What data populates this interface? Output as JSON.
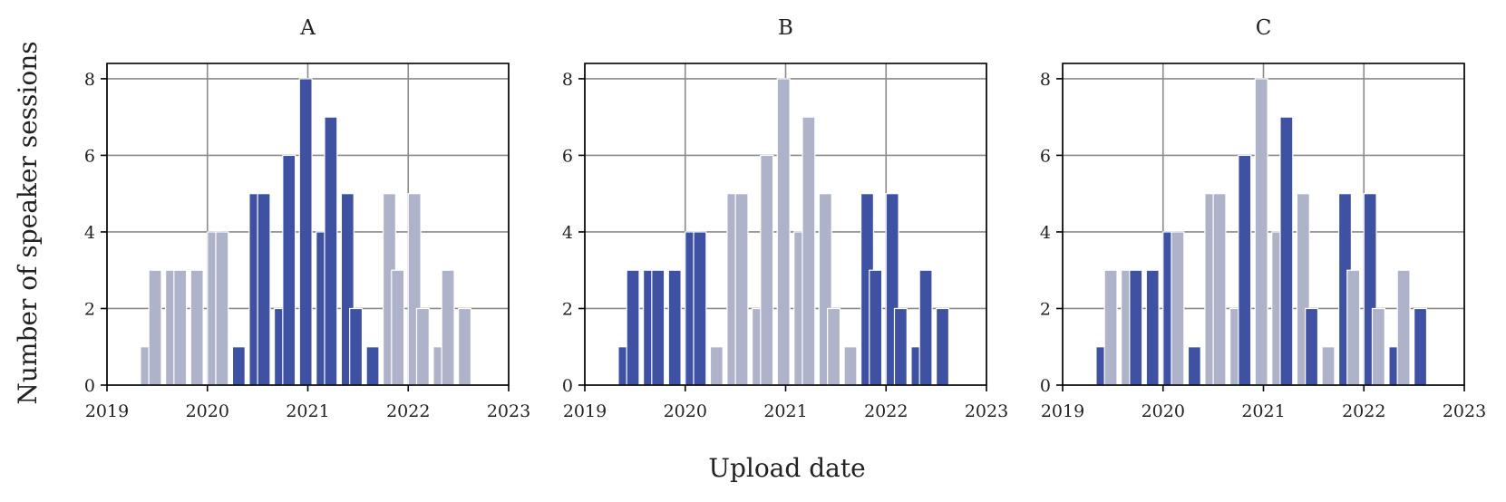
{
  "figure": {
    "xlabel": "Upload date",
    "ylabel": "Number of speaker sessions"
  },
  "colors": {
    "highlight": "#3f51a3",
    "muted": "#aeb3c9",
    "grid": "#8a8a8a"
  },
  "chart_data": [
    {
      "type": "bar",
      "title": "A",
      "x": [
        "2019-05",
        "2019-06",
        "2019-07",
        "2019-08",
        "2019-09",
        "2019-10",
        "2019-11",
        "2019-12",
        "2020-01",
        "2020-02",
        "2020-03",
        "2020-04",
        "2020-05",
        "2020-06",
        "2020-07",
        "2020-08",
        "2020-09",
        "2020-10",
        "2020-11",
        "2020-12",
        "2021-01",
        "2021-02",
        "2021-03",
        "2021-04",
        "2021-05",
        "2021-06",
        "2021-07",
        "2021-08",
        "2021-09",
        "2021-10",
        "2021-11",
        "2021-12",
        "2022-01",
        "2022-02",
        "2022-03",
        "2022-04",
        "2022-05",
        "2022-06",
        "2022-07",
        "2022-08",
        "2022-09",
        "2022-10"
      ],
      "bins": [
        {
          "start": "2019-05",
          "value": 1,
          "highlight": false
        },
        {
          "start": "2019-06",
          "value": 3,
          "highlight": false
        },
        {
          "start": "2019-08",
          "value": 3,
          "highlight": false
        },
        {
          "start": "2019-09",
          "value": 3,
          "highlight": false
        },
        {
          "start": "2019-11",
          "value": 3,
          "highlight": false
        },
        {
          "start": "2020-01",
          "value": 4,
          "highlight": false
        },
        {
          "start": "2020-02",
          "value": 4,
          "highlight": false
        },
        {
          "start": "2020-04",
          "value": 1,
          "highlight": true
        },
        {
          "start": "2020-06",
          "value": 5,
          "highlight": true
        },
        {
          "start": "2020-07",
          "value": 5,
          "highlight": true
        },
        {
          "start": "2020-09",
          "value": 2,
          "highlight": true
        },
        {
          "start": "2020-10",
          "value": 6,
          "highlight": true
        },
        {
          "start": "2020-12",
          "value": 8,
          "highlight": true
        },
        {
          "start": "2021-02",
          "value": 4,
          "highlight": true
        },
        {
          "start": "2021-03",
          "value": 7,
          "highlight": true
        },
        {
          "start": "2021-05",
          "value": 5,
          "highlight": true
        },
        {
          "start": "2021-06",
          "value": 2,
          "highlight": true
        },
        {
          "start": "2021-08",
          "value": 1,
          "highlight": true
        },
        {
          "start": "2021-10",
          "value": 5,
          "highlight": false
        },
        {
          "start": "2021-11",
          "value": 3,
          "highlight": false
        },
        {
          "start": "2022-01",
          "value": 5,
          "highlight": false
        },
        {
          "start": "2022-02",
          "value": 2,
          "highlight": false
        },
        {
          "start": "2022-04",
          "value": 1,
          "highlight": false
        },
        {
          "start": "2022-05",
          "value": 3,
          "highlight": false
        },
        {
          "start": "2022-07",
          "value": 2,
          "highlight": false
        }
      ],
      "xlim": [
        "2019-01-01",
        "2023-01-01"
      ],
      "ylim": [
        0,
        8.4
      ],
      "xticks": [
        "2019",
        "2020",
        "2021",
        "2022",
        "2023"
      ],
      "yticks": [
        "0",
        "2",
        "4",
        "6",
        "8"
      ],
      "grid": true
    },
    {
      "type": "bar",
      "title": "B",
      "bins": [
        {
          "start": "2019-05",
          "value": 1,
          "highlight": true
        },
        {
          "start": "2019-06",
          "value": 3,
          "highlight": true
        },
        {
          "start": "2019-08",
          "value": 3,
          "highlight": true
        },
        {
          "start": "2019-09",
          "value": 3,
          "highlight": true
        },
        {
          "start": "2019-11",
          "value": 3,
          "highlight": true
        },
        {
          "start": "2020-01",
          "value": 4,
          "highlight": true
        },
        {
          "start": "2020-02",
          "value": 4,
          "highlight": true
        },
        {
          "start": "2020-04",
          "value": 1,
          "highlight": false
        },
        {
          "start": "2020-06",
          "value": 5,
          "highlight": false
        },
        {
          "start": "2020-07",
          "value": 5,
          "highlight": false
        },
        {
          "start": "2020-09",
          "value": 2,
          "highlight": false
        },
        {
          "start": "2020-10",
          "value": 6,
          "highlight": false
        },
        {
          "start": "2020-12",
          "value": 8,
          "highlight": false
        },
        {
          "start": "2021-02",
          "value": 4,
          "highlight": false
        },
        {
          "start": "2021-03",
          "value": 7,
          "highlight": false
        },
        {
          "start": "2021-05",
          "value": 5,
          "highlight": false
        },
        {
          "start": "2021-06",
          "value": 2,
          "highlight": false
        },
        {
          "start": "2021-08",
          "value": 1,
          "highlight": false
        },
        {
          "start": "2021-10",
          "value": 5,
          "highlight": true
        },
        {
          "start": "2021-11",
          "value": 3,
          "highlight": true
        },
        {
          "start": "2022-01",
          "value": 5,
          "highlight": true
        },
        {
          "start": "2022-02",
          "value": 2,
          "highlight": true
        },
        {
          "start": "2022-04",
          "value": 1,
          "highlight": true
        },
        {
          "start": "2022-05",
          "value": 3,
          "highlight": true
        },
        {
          "start": "2022-07",
          "value": 2,
          "highlight": true
        }
      ],
      "xlim": [
        "2019-01-01",
        "2023-01-01"
      ],
      "ylim": [
        0,
        8.4
      ],
      "xticks": [
        "2019",
        "2020",
        "2021",
        "2022",
        "2023"
      ],
      "yticks": [
        "0",
        "2",
        "4",
        "6",
        "8"
      ],
      "grid": true
    },
    {
      "type": "bar",
      "title": "C",
      "bins": [
        {
          "start": "2019-05",
          "value": 1,
          "highlight": true
        },
        {
          "start": "2019-06",
          "value": 3,
          "highlight": false
        },
        {
          "start": "2019-08",
          "value": 3,
          "highlight": false
        },
        {
          "start": "2019-09",
          "value": 3,
          "highlight": true
        },
        {
          "start": "2019-11",
          "value": 3,
          "highlight": true
        },
        {
          "start": "2020-01",
          "value": 4,
          "highlight": true
        },
        {
          "start": "2020-02",
          "value": 4,
          "highlight": false
        },
        {
          "start": "2020-04",
          "value": 1,
          "highlight": true
        },
        {
          "start": "2020-06",
          "value": 5,
          "highlight": false
        },
        {
          "start": "2020-07",
          "value": 5,
          "highlight": false
        },
        {
          "start": "2020-09",
          "value": 2,
          "highlight": false
        },
        {
          "start": "2020-10",
          "value": 6,
          "highlight": true
        },
        {
          "start": "2020-12",
          "value": 8,
          "highlight": false
        },
        {
          "start": "2021-02",
          "value": 4,
          "highlight": false
        },
        {
          "start": "2021-03",
          "value": 7,
          "highlight": true
        },
        {
          "start": "2021-05",
          "value": 5,
          "highlight": false
        },
        {
          "start": "2021-06",
          "value": 2,
          "highlight": true
        },
        {
          "start": "2021-08",
          "value": 1,
          "highlight": false
        },
        {
          "start": "2021-10",
          "value": 5,
          "highlight": true
        },
        {
          "start": "2021-11",
          "value": 3,
          "highlight": false
        },
        {
          "start": "2022-01",
          "value": 5,
          "highlight": true
        },
        {
          "start": "2022-02",
          "value": 2,
          "highlight": false
        },
        {
          "start": "2022-04",
          "value": 1,
          "highlight": true
        },
        {
          "start": "2022-05",
          "value": 3,
          "highlight": false
        },
        {
          "start": "2022-07",
          "value": 2,
          "highlight": true
        }
      ],
      "xlim": [
        "2019-01-01",
        "2023-01-01"
      ],
      "ylim": [
        0,
        8.4
      ],
      "xticks": [
        "2019",
        "2020",
        "2021",
        "2022",
        "2023"
      ],
      "yticks": [
        "0",
        "2",
        "4",
        "6",
        "8"
      ],
      "grid": true
    }
  ]
}
